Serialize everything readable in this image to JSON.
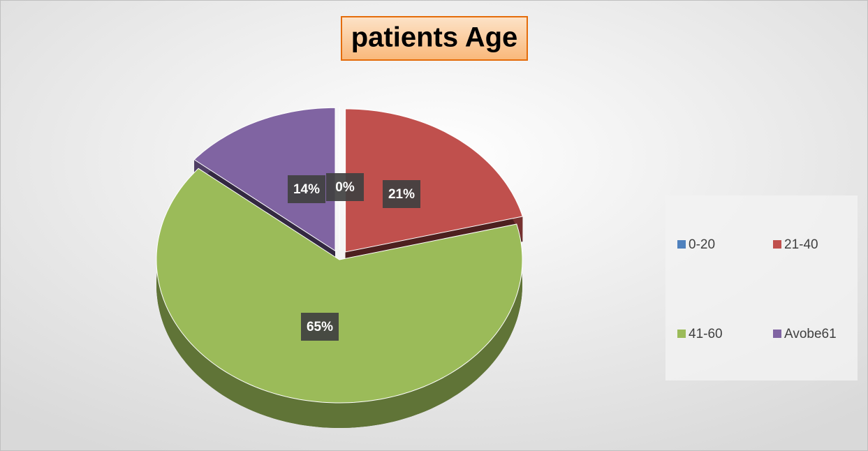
{
  "chart_data": {
    "type": "pie",
    "title": "patients Age",
    "categories": [
      "0-20",
      "21-40",
      "41-60",
      "Avobe61"
    ],
    "values": [
      0,
      21,
      65,
      14
    ],
    "value_labels": [
      "0%",
      "21%",
      "65%",
      "14%"
    ],
    "colors": [
      "#4f81bd",
      "#c0504d",
      "#9bbb59",
      "#8064a2"
    ],
    "legend": "right"
  }
}
